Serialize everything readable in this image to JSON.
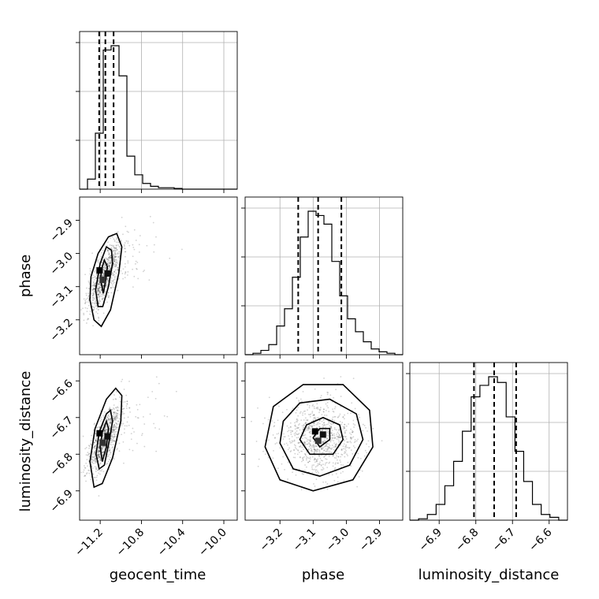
{
  "chart_data": {
    "type": "corner",
    "parameters": [
      "geocent_time",
      "phase",
      "luminosity_distance"
    ],
    "xlabels": [
      "geocent_time",
      "phase",
      "luminosity_distance"
    ],
    "ylabels": [
      "",
      "phase",
      "luminosity_distance"
    ],
    "ranges": {
      "geocent_time": [
        -11.4,
        -9.87
      ],
      "phase": [
        -3.305,
        -2.83
      ],
      "luminosity_distance": [
        -6.98,
        -6.55
      ]
    },
    "ticks": {
      "geocent_time": [
        -11.2,
        -10.8,
        -10.4,
        -10.0
      ],
      "phase": [
        -3.2,
        -3.1,
        -3.0,
        -2.9
      ],
      "luminosity_distance": [
        -6.9,
        -6.8,
        -6.7,
        -6.6
      ]
    },
    "tick_labels": {
      "geocent_time": [
        "−11.2",
        "−10.8",
        "−10.4",
        "−10.0"
      ],
      "phase": [
        "−3.2",
        "−3.1",
        "−3.0",
        "−2.9"
      ],
      "luminosity_distance": [
        "−6.9",
        "−6.8",
        "−6.7",
        "−6.6"
      ]
    },
    "quantiles": {
      "geocent_time": [
        -11.21,
        -11.15,
        -11.07
      ],
      "phase": [
        -3.145,
        -3.085,
        -3.015
      ],
      "luminosity_distance": [
        -6.805,
        -6.75,
        -6.69
      ]
    },
    "histograms": {
      "geocent_time": {
        "edges_from": -11.4,
        "edges_to": -9.87,
        "counts": [
          0.0,
          0.07,
          0.39,
          0.97,
          1.0,
          0.79,
          0.23,
          0.1,
          0.04,
          0.02,
          0.01,
          0.01,
          0.005,
          0,
          0,
          0,
          0,
          0,
          0,
          0
        ]
      },
      "phase": {
        "edges_from": -3.305,
        "edges_to": -2.83,
        "counts": [
          0.0,
          0.01,
          0.03,
          0.07,
          0.2,
          0.32,
          0.54,
          0.82,
          1.0,
          0.97,
          0.91,
          0.65,
          0.41,
          0.25,
          0.16,
          0.09,
          0.04,
          0.02,
          0.01,
          0.0
        ]
      },
      "luminosity_distance": {
        "edges_from": -6.98,
        "edges_to": -6.55,
        "counts": [
          0.0,
          0.01,
          0.04,
          0.11,
          0.24,
          0.41,
          0.62,
          0.86,
          0.94,
          1.0,
          0.96,
          0.72,
          0.48,
          0.27,
          0.11,
          0.04,
          0.02,
          0.0
        ]
      }
    },
    "pairs": [
      {
        "x": "geocent_time",
        "y": "phase",
        "center": [
          -11.16,
          -3.07
        ],
        "contours": [
          [
            [
              -11.195,
              -3.08
            ],
            [
              -11.17,
              -3.12
            ],
            [
              -11.145,
              -3.08
            ],
            [
              -11.13,
              -3.04
            ],
            [
              -11.16,
              -3.02
            ],
            [
              -11.19,
              -3.05
            ]
          ],
          [
            [
              -11.245,
              -3.11
            ],
            [
              -11.22,
              -3.16
            ],
            [
              -11.175,
              -3.16
            ],
            [
              -11.12,
              -3.1
            ],
            [
              -11.08,
              -3.03
            ],
            [
              -11.09,
              -2.99
            ],
            [
              -11.14,
              -2.98
            ],
            [
              -11.2,
              -3.03
            ]
          ],
          [
            [
              -11.3,
              -3.14
            ],
            [
              -11.26,
              -3.2
            ],
            [
              -11.19,
              -3.22
            ],
            [
              -11.1,
              -3.17
            ],
            [
              -11.02,
              -3.06
            ],
            [
              -10.99,
              -2.98
            ],
            [
              -11.04,
              -2.94
            ],
            [
              -11.12,
              -2.95
            ],
            [
              -11.22,
              -3.0
            ],
            [
              -11.29,
              -3.07
            ]
          ]
        ]
      },
      {
        "x": "geocent_time",
        "y": "luminosity_distance",
        "center": [
          -11.16,
          -6.76
        ],
        "contours": [
          [
            [
              -11.2,
              -6.78
            ],
            [
              -11.18,
              -6.82
            ],
            [
              -11.14,
              -6.78
            ],
            [
              -11.12,
              -6.73
            ],
            [
              -11.14,
              -6.71
            ],
            [
              -11.18,
              -6.74
            ]
          ],
          [
            [
              -11.24,
              -6.8
            ],
            [
              -11.21,
              -6.84
            ],
            [
              -11.16,
              -6.83
            ],
            [
              -11.11,
              -6.76
            ],
            [
              -11.08,
              -6.71
            ],
            [
              -11.1,
              -6.68
            ],
            [
              -11.14,
              -6.69
            ],
            [
              -11.21,
              -6.74
            ]
          ],
          [
            [
              -11.3,
              -6.82
            ],
            [
              -11.26,
              -6.89
            ],
            [
              -11.18,
              -6.88
            ],
            [
              -11.08,
              -6.81
            ],
            [
              -11.0,
              -6.71
            ],
            [
              -10.99,
              -6.64
            ],
            [
              -11.05,
              -6.62
            ],
            [
              -11.14,
              -6.65
            ],
            [
              -11.25,
              -6.73
            ]
          ]
        ]
      },
      {
        "x": "phase",
        "y": "luminosity_distance",
        "center": [
          -3.08,
          -6.755
        ],
        "contours": [
          [
            [
              -3.1,
              -6.755
            ],
            [
              -3.08,
              -6.78
            ],
            [
              -3.05,
              -6.76
            ],
            [
              -3.05,
              -6.73
            ],
            [
              -3.08,
              -6.73
            ]
          ],
          [
            [
              -3.14,
              -6.76
            ],
            [
              -3.11,
              -6.8
            ],
            [
              -3.04,
              -6.8
            ],
            [
              -3.01,
              -6.76
            ],
            [
              -3.02,
              -6.72
            ],
            [
              -3.07,
              -6.7
            ],
            [
              -3.12,
              -6.72
            ]
          ],
          [
            [
              -3.2,
              -6.77
            ],
            [
              -3.16,
              -6.84
            ],
            [
              -3.08,
              -6.86
            ],
            [
              -2.99,
              -6.83
            ],
            [
              -2.95,
              -6.76
            ],
            [
              -2.97,
              -6.69
            ],
            [
              -3.05,
              -6.65
            ],
            [
              -3.14,
              -6.66
            ],
            [
              -3.19,
              -6.71
            ]
          ],
          [
            [
              -3.245,
              -6.78
            ],
            [
              -3.2,
              -6.87
            ],
            [
              -3.1,
              -6.9
            ],
            [
              -2.98,
              -6.87
            ],
            [
              -2.92,
              -6.78
            ],
            [
              -2.93,
              -6.68
            ],
            [
              -3.01,
              -6.61
            ],
            [
              -3.13,
              -6.61
            ],
            [
              -3.22,
              -6.67
            ]
          ]
        ]
      }
    ]
  }
}
